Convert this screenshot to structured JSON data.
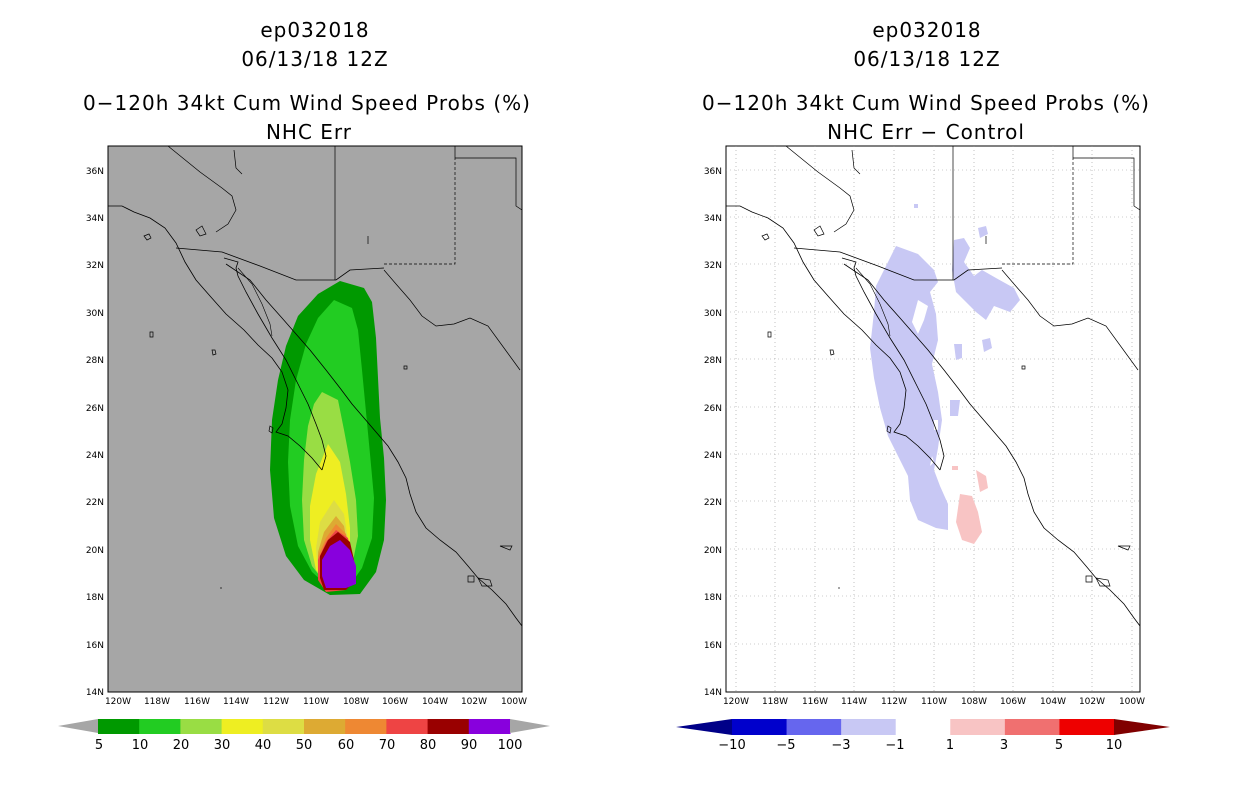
{
  "left": {
    "title_id": "ep032018",
    "title_time": "06/13/18 12Z",
    "title_product": "0−120h 34kt Cum Wind Speed Probs (%)",
    "subtitle": "NHC Err",
    "lat_labels": [
      "36N",
      "34N",
      "32N",
      "30N",
      "28N",
      "26N",
      "24N",
      "22N",
      "20N",
      "18N",
      "16N",
      "14N"
    ],
    "lon_labels": [
      "120W",
      "118W",
      "116W",
      "114W",
      "112W",
      "110W",
      "108W",
      "106W",
      "104W",
      "102W",
      "100W"
    ],
    "colorbar": {
      "labels": [
        "5",
        "10",
        "20",
        "30",
        "40",
        "50",
        "60",
        "70",
        "80",
        "90",
        "100"
      ],
      "colors": [
        "#009900",
        "#22cc22",
        "#99dd44",
        "#eeee22",
        "#dddd44",
        "#ddaa33",
        "#ee8833",
        "#ee4444",
        "#990000",
        "#8800dd"
      ],
      "below_color": "#a6a6a6",
      "above_color": "#a6a6a6"
    },
    "background_color": "#a6a6a6"
  },
  "right": {
    "title_id": "ep032018",
    "title_time": "06/13/18 12Z",
    "title_product": "0−120h 34kt Cum Wind Speed Probs (%)",
    "subtitle": "NHC Err − Control",
    "lat_labels": [
      "36N",
      "34N",
      "32N",
      "30N",
      "28N",
      "26N",
      "24N",
      "22N",
      "20N",
      "18N",
      "16N",
      "14N"
    ],
    "lon_labels": [
      "120W",
      "118W",
      "116W",
      "114W",
      "112W",
      "110W",
      "108W",
      "106W",
      "104W",
      "102W",
      "100W"
    ],
    "colorbar": {
      "labels": [
        "−10",
        "−5",
        "−3",
        "−1",
        "1",
        "3",
        "5",
        "10"
      ],
      "colors": [
        "#0000cc",
        "#6666ee",
        "#c8c8f4",
        "#ffffff",
        "#f8c4c4",
        "#f07070",
        "#ee0000"
      ],
      "below_color": "#000088",
      "above_color": "#800000"
    },
    "negative_color": "#c8c8f4",
    "positive_color": "#f8c4c4"
  }
}
